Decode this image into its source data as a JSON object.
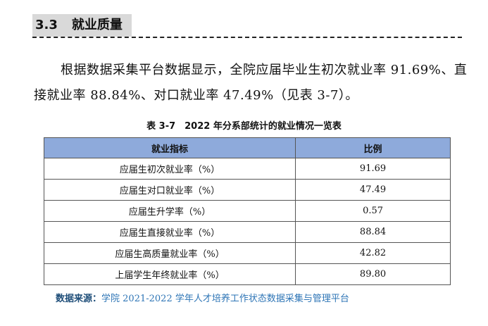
{
  "section": {
    "number": "3.3",
    "title": "就业质量"
  },
  "paragraph": "根据数据采集平台数据显示，全院应届毕业生初次就业率 91.69%、直接就业率 88.84%、对口就业率 47.49%（见表 3-7）。",
  "table": {
    "caption": "表 3-7　2022 年分系部统计的就业情况一览表",
    "header_color": "#8eaadb",
    "headers": [
      "就业指标",
      "比例"
    ],
    "rows": [
      {
        "indicator": "应届生初次就业率（%）",
        "value": "91.69"
      },
      {
        "indicator": "应届生对口就业率（%）",
        "value": "47.49"
      },
      {
        "indicator": "应届生升学率（%）",
        "value": "0.57"
      },
      {
        "indicator": "应届生直接就业率（%）",
        "value": "88.84"
      },
      {
        "indicator": "应届生高质量就业率（%）",
        "value": "42.82"
      },
      {
        "indicator": "上届学生年终就业率（%）",
        "value": "89.80"
      }
    ]
  },
  "source": {
    "label": "数据来源：",
    "text": "学院 2021-2022 学年人才培养工作状态数据采集与管理平台",
    "color": "#2e75b6"
  }
}
